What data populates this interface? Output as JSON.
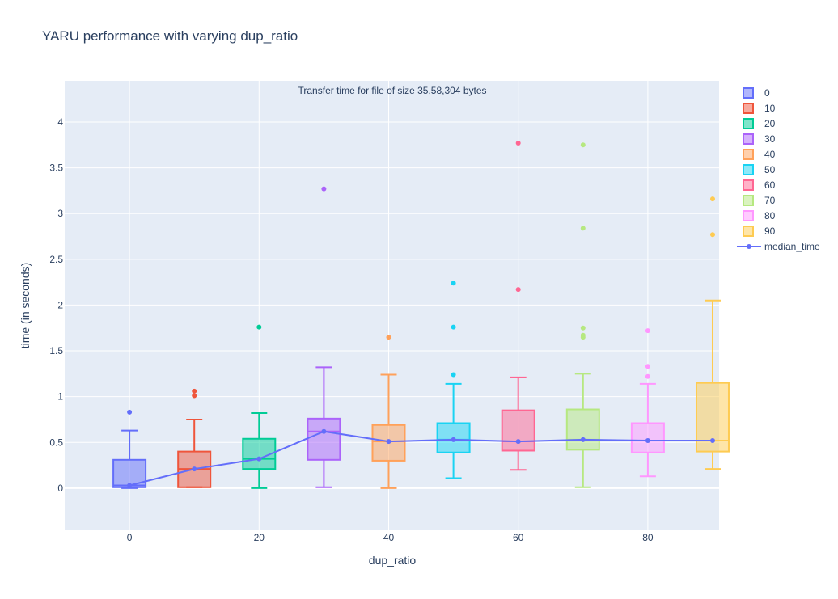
{
  "chart_data": {
    "type": "box",
    "title": "YARU performance with varying dup_ratio",
    "annotation": "Transfer time for file of size 35,58,304 bytes",
    "xlabel": "dup_ratio",
    "ylabel": "time (in seconds)",
    "xlim": [
      -10,
      91
    ],
    "ylim": [
      -0.46,
      4.45
    ],
    "x_ticks": [
      0,
      20,
      40,
      60,
      80
    ],
    "y_ticks": [
      0,
      0.5,
      1,
      1.5,
      2,
      2.5,
      3,
      3.5,
      4
    ],
    "grid": true,
    "legend_position": "right",
    "boxes": [
      {
        "name": "0",
        "x": 0,
        "color": "#636efa",
        "whisker_low": 0.0,
        "q1": 0.01,
        "median": 0.03,
        "q3": 0.31,
        "whisker_high": 0.63,
        "outliers": [
          0.83
        ]
      },
      {
        "name": "10",
        "x": 10,
        "color": "#ef553b",
        "whisker_low": 0.01,
        "q1": 0.01,
        "median": 0.21,
        "q3": 0.4,
        "whisker_high": 0.75,
        "outliers": [
          1.01,
          1.06
        ]
      },
      {
        "name": "20",
        "x": 20,
        "color": "#00cc96",
        "whisker_low": 0.0,
        "q1": 0.21,
        "median": 0.32,
        "q3": 0.54,
        "whisker_high": 0.82,
        "outliers": [
          1.76
        ]
      },
      {
        "name": "30",
        "x": 30,
        "color": "#ab63fa",
        "whisker_low": 0.01,
        "q1": 0.31,
        "median": 0.62,
        "q3": 0.76,
        "whisker_high": 1.32,
        "outliers": [
          3.27
        ]
      },
      {
        "name": "40",
        "x": 40,
        "color": "#ffa15a",
        "whisker_low": 0.0,
        "q1": 0.3,
        "median": 0.51,
        "q3": 0.69,
        "whisker_high": 1.24,
        "outliers": [
          1.65
        ]
      },
      {
        "name": "50",
        "x": 50,
        "color": "#19d3f3",
        "whisker_low": 0.11,
        "q1": 0.39,
        "median": 0.53,
        "q3": 0.71,
        "whisker_high": 1.14,
        "outliers": [
          1.24,
          1.76,
          2.24
        ]
      },
      {
        "name": "60",
        "x": 60,
        "color": "#ff6692",
        "whisker_low": 0.2,
        "q1": 0.41,
        "median": 0.51,
        "q3": 0.85,
        "whisker_high": 1.21,
        "outliers": [
          2.17,
          3.77
        ]
      },
      {
        "name": "70",
        "x": 70,
        "color": "#b6e880",
        "whisker_low": 0.01,
        "q1": 0.42,
        "median": 0.53,
        "q3": 0.86,
        "whisker_high": 1.25,
        "outliers": [
          1.65,
          1.67,
          1.75,
          2.84,
          3.75
        ]
      },
      {
        "name": "80",
        "x": 80,
        "color": "#ff97ff",
        "whisker_low": 0.13,
        "q1": 0.39,
        "median": 0.52,
        "q3": 0.71,
        "whisker_high": 1.14,
        "outliers": [
          1.22,
          1.33,
          1.72
        ]
      },
      {
        "name": "90",
        "x": 90,
        "color": "#fecb52",
        "whisker_low": 0.21,
        "q1": 0.4,
        "median": 0.52,
        "q3": 1.15,
        "whisker_high": 2.05,
        "outliers": [
          2.77,
          3.16
        ]
      }
    ],
    "line_series": {
      "name": "median_time",
      "color": "#636efa",
      "x": [
        0,
        10,
        20,
        30,
        40,
        50,
        60,
        70,
        80,
        90
      ],
      "y": [
        0.03,
        0.21,
        0.32,
        0.62,
        0.51,
        0.53,
        0.51,
        0.53,
        0.52,
        0.52
      ]
    }
  }
}
